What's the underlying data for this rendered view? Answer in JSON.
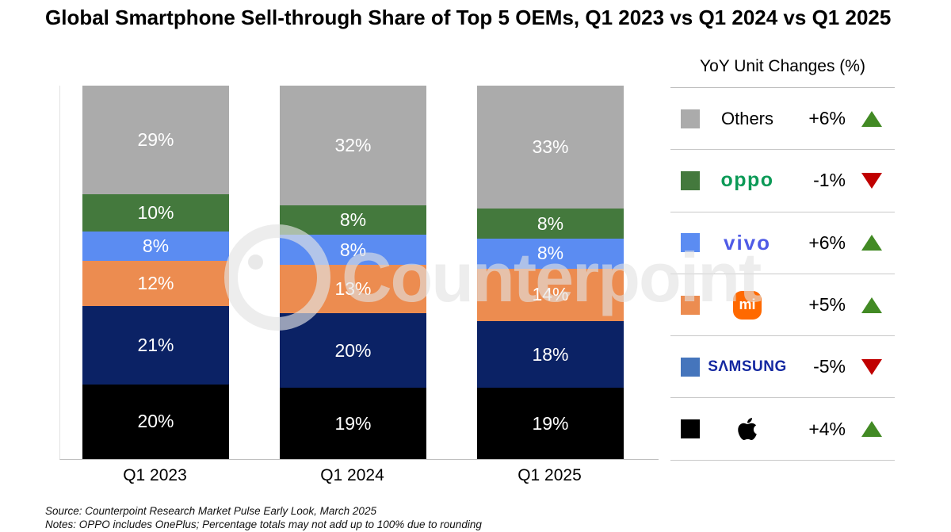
{
  "title": "Global Smartphone Sell-through Share of Top 5 OEMs, Q1 2023 vs Q1 2024 vs Q1 2025",
  "watermark": {
    "text": "Counterpoint"
  },
  "chart_data": {
    "type": "bar",
    "subtype": "stacked-100",
    "categories": [
      "Q1 2023",
      "Q1 2024",
      "Q1 2025"
    ],
    "series": [
      {
        "name": "Others",
        "color": "#ABABAB",
        "values": [
          29,
          32,
          33
        ]
      },
      {
        "name": "OPPO",
        "color": "#44793D",
        "values": [
          10,
          8,
          8
        ]
      },
      {
        "name": "vivo",
        "color": "#5B8CF2",
        "values": [
          8,
          8,
          8
        ]
      },
      {
        "name": "Xiaomi",
        "color": "#EC8C50",
        "values": [
          12,
          13,
          14
        ]
      },
      {
        "name": "Samsung",
        "color": "#0B2265",
        "values": [
          21,
          20,
          18
        ]
      },
      {
        "name": "Apple",
        "color": "#000000",
        "values": [
          20,
          19,
          19
        ]
      }
    ],
    "value_suffix": "%",
    "ylim": [
      0,
      100
    ],
    "grid": false,
    "legend_position": "right",
    "stack_order_top_to_bottom": [
      "Others",
      "OPPO",
      "vivo",
      "Xiaomi",
      "Samsung",
      "Apple"
    ]
  },
  "legend": {
    "title": "YoY Unit Changes (%)",
    "up_color": "#428A24",
    "down_color": "#C00000",
    "rows": [
      {
        "brand": "Others",
        "logo_text": "Others",
        "logo_color": "#000000",
        "change": "+6%",
        "direction": "up",
        "swatch": "#ABABAB"
      },
      {
        "brand": "OPPO",
        "logo_text": "oppo",
        "logo_color": "#0C9A57",
        "change": "-1%",
        "direction": "down",
        "swatch": "#44793D"
      },
      {
        "brand": "vivo",
        "logo_text": "vivo",
        "logo_color": "#4F5BE6",
        "change": "+6%",
        "direction": "up",
        "swatch": "#5B8CF2"
      },
      {
        "brand": "Xiaomi",
        "logo_text": "mi",
        "logo_color": "#FFFFFF",
        "badge_color": "#FF6900",
        "change": "+5%",
        "direction": "up",
        "swatch": "#EC8C50"
      },
      {
        "brand": "Samsung",
        "logo_text": "SΛMSUNG",
        "logo_color": "#1428A0",
        "change": "-5%",
        "direction": "down",
        "swatch": "#4575BC"
      },
      {
        "brand": "Apple",
        "logo_text": "",
        "logo_color": "#000000",
        "change": "+4%",
        "direction": "up",
        "swatch": "#000000"
      }
    ]
  },
  "footer": {
    "source": "Source: Counterpoint Research Market Pulse Early Look, March 2025",
    "notes": "Notes: OPPO includes OnePlus; Percentage totals may not add up to 100% due to rounding"
  }
}
